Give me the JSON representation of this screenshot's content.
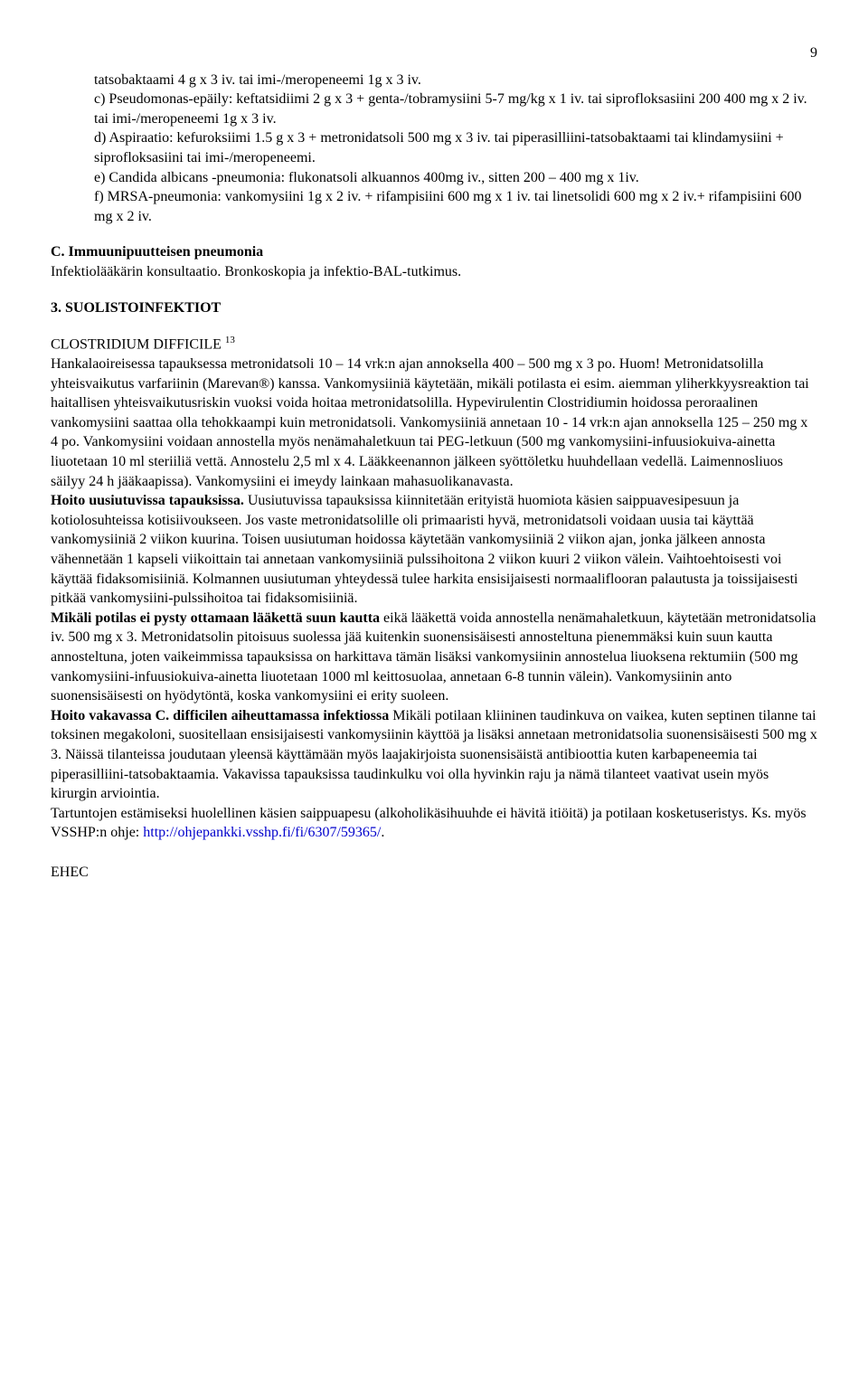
{
  "page_number": "9",
  "intro_block": {
    "line1": "tatsobaktaami 4 g x 3 iv. tai imi-/meropeneemi 1g x 3 iv.",
    "item_c": "c) Pseudomonas-epäily: keftatsidiimi 2 g x 3 + genta-/tobramysiini 5-7 mg/kg x 1 iv. tai siprofloksasiini 200 400 mg x 2 iv. tai imi-/meropeneemi 1g x 3 iv.",
    "item_d": "d) Aspiraatio: kefuroksiimi 1.5 g x 3 + metronidatsoli 500 mg x 3 iv. tai piperasilliini-tatsobaktaami tai klindamysiini + siprofloksasiini tai imi-/meropeneemi.",
    "item_e": "e) Candida albicans -pneumonia: flukonatsoli alkuannos 400mg iv., sitten 200 – 400 mg x 1iv.",
    "item_f": "f) MRSA-pneumonia: vankomysiini 1g x 2 iv. + rifampisiini 600 mg x 1 iv. tai linetsolidi 600 mg x 2 iv.+ rifampisiini 600 mg x 2 iv."
  },
  "section_c": {
    "heading": "C. Immuunipuutteisen pneumonia",
    "body": "Infektiolääkärin konsultaatio. Bronkoskopia ja infektio-BAL-tutkimus."
  },
  "section_3": {
    "heading": "3. SUOLISTOINFEKTIOT"
  },
  "clostridium": {
    "title": "CLOSTRIDIUM DIFFICILE ",
    "ref": "13",
    "p1": "Hankalaoireisessa tapauksessa metronidatsoli 10 – 14 vrk:n ajan annoksella 400 – 500 mg x 3 po. Huom! Metronidatsolilla yhteisvaikutus varfariinin (Marevan®) kanssa. Vankomysiiniä käytetään, mikäli potilasta ei esim. aiemman yliherkkyysreaktion tai haitallisen yhteisvaikutusriskin vuoksi voida hoitaa metronidatsolilla. Hypevirulentin Clostridiumin hoidossa peroraalinen vankomysiini saattaa olla tehokkaampi kuin metronidatsoli. Vankomysiiniä annetaan 10 - 14 vrk:n ajan annoksella 125 – 250 mg x 4 po. Vankomysiini voidaan annostella myös nenämahaletkuun tai PEG-letkuun (500 mg vankomysiini-infuusiokuiva-ainetta liuotetaan 10 ml steriiliä vettä. Annostelu 2,5 ml x 4. Lääkkeenannon jälkeen syöttöletku huuhdellaan vedellä. Laimennosliuos säilyy 24 h jääkaapissa). Vankomysiini ei imeydy lainkaan mahasuolikanavasta.",
    "p2_bold": "Hoito uusiutuvissa tapauksissa.",
    "p2_rest": " Uusiutuvissa tapauksissa kiinnitetään erityistä huomiota käsien saippuavesipesuun ja kotiolosuhteissa kotisiivoukseen. Jos vaste metronidatsolille oli primaaristi hyvä, metronidatsoli voidaan uusia tai käyttää vankomysiiniä 2 viikon kuurina. Toisen uusiutuman hoidossa käytetään vankomysiiniä 2 viikon ajan, jonka jälkeen annosta vähennetään 1 kapseli viikoittain tai annetaan vankomysiiniä pulssihoitona 2 viikon kuuri 2 viikon välein. Vaihtoehtoisesti voi käyttää fidaksomisiiniä. Kolmannen uusiutuman yhteydessä tulee harkita ensisijaisesti normaaliflooran palautusta ja toissijaisesti pitkää vankomysiini-pulssihoitoa tai fidaksomisiiniä.",
    "p3_bold": "Mikäli potilas ei pysty ottamaan lääkettä suun kautta",
    "p3_rest": " eikä lääkettä voida annostella nenämahaletkuun, käytetään metronidatsolia iv. 500 mg x 3. Metronidatsolin pitoisuus suolessa jää kuitenkin suonensisäisesti annosteltuna pienemmäksi kuin suun kautta annosteltuna, joten vaikeimmissa tapauksissa on harkittava tämän lisäksi vankomysiinin annostelua liuoksena rektumiin (500 mg vankomysiini-infuusiokuiva-ainetta liuotetaan 1000 ml keittosuolaa, annetaan 6-8 tunnin välein). Vankomysiinin anto suonensisäisesti on hyödytöntä, koska vankomysiini ei erity suoleen.",
    "p4_bold": "Hoito vakavassa C. difficilen aiheuttamassa infektiossa",
    "p4_rest": " Mikäli potilaan kliininen taudinkuva on vaikea, kuten septinen tilanne tai toksinen megakoloni, suositellaan ensisijaisesti vankomysiinin käyttöä ja lisäksi annetaan metronidatsolia suonensisäisesti 500 mg x 3. Näissä tilanteissa joudutaan yleensä käyttämään myös laajakirjoista suonensisäistä antibioottia kuten karbapeneemia tai piperasilliini-tatsobaktaamia. Vakavissa tapauksissa taudinkulku voi olla hyvinkin raju ja nämä tilanteet vaativat usein myös kirurgin arviointia.",
    "p5_pre": "Tartuntojen estämiseksi huolellinen käsien saippuapesu (alkoholikäsihuuhde ei hävitä itiöitä) ja potilaan kosketuseristys. Ks. myös VSSHP:n ohje: ",
    "link_text": "http://ohjepankki.vsshp.fi/fi/6307/59365/",
    "p5_post": "."
  },
  "ehec": {
    "title": "EHEC"
  }
}
